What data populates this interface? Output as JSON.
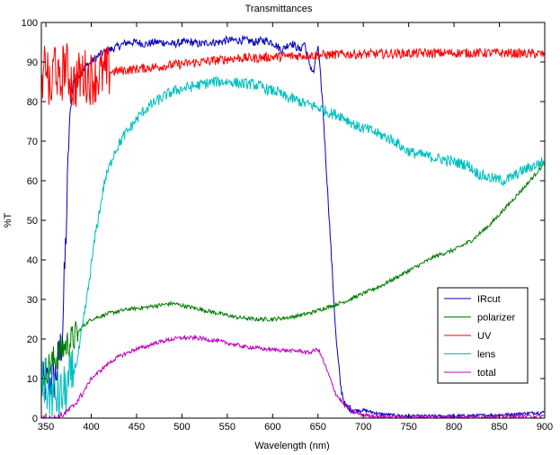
{
  "chart_data": {
    "type": "line",
    "title": "Transmittances",
    "xlabel": "Wavelength (nm)",
    "ylabel": "%T",
    "xlim": [
      345,
      900
    ],
    "ylim": [
      0,
      100
    ],
    "xticks": [
      350,
      400,
      450,
      500,
      550,
      600,
      650,
      700,
      750,
      800,
      850,
      900
    ],
    "yticks": [
      0,
      10,
      20,
      30,
      40,
      50,
      60,
      70,
      80,
      90,
      100
    ],
    "grid": false,
    "legend_position": "bottom-right",
    "series": [
      {
        "name": "IRcut",
        "color": "#0000bf",
        "x": [
          345,
          360,
          368,
          372,
          376,
          380,
          390,
          400,
          410,
          420,
          430,
          440,
          450,
          460,
          470,
          480,
          490,
          500,
          510,
          520,
          530,
          540,
          550,
          560,
          570,
          580,
          590,
          600,
          610,
          620,
          630,
          635,
          640,
          645,
          650,
          655,
          660,
          665,
          670,
          675,
          680,
          690,
          700,
          710,
          720,
          730,
          740,
          750,
          800,
          850,
          900
        ],
        "y": [
          8,
          10,
          20,
          45,
          75,
          85,
          88,
          90,
          92,
          93,
          94,
          95,
          95,
          94.5,
          95,
          95,
          94.5,
          95,
          95,
          94.5,
          95,
          95,
          95.5,
          95.5,
          95.5,
          95,
          95.5,
          95,
          93,
          95,
          93,
          95,
          90,
          87,
          94,
          80,
          60,
          40,
          20,
          8,
          3,
          2,
          2,
          1.5,
          1,
          0.8,
          0.6,
          0.5,
          0.5,
          0.8,
          1.5
        ]
      },
      {
        "name": "polarizer",
        "color": "#007f00",
        "x": [
          345,
          350,
          360,
          370,
          380,
          390,
          400,
          420,
          440,
          460,
          480,
          490,
          500,
          520,
          540,
          560,
          580,
          600,
          620,
          640,
          660,
          680,
          700,
          720,
          740,
          760,
          780,
          800,
          820,
          840,
          860,
          880,
          900
        ],
        "y": [
          10,
          12,
          15,
          18,
          20,
          23,
          25,
          26.5,
          27.5,
          28,
          28.7,
          29,
          28.5,
          27.5,
          26.5,
          25.5,
          25,
          25,
          25.5,
          26.5,
          28,
          29.5,
          31.5,
          33.5,
          36,
          38.5,
          41,
          42.5,
          45,
          49,
          54,
          59,
          64.5
        ]
      },
      {
        "name": "UV",
        "color": "#ff0000",
        "x": [
          345,
          350,
          355,
          360,
          365,
          370,
          380,
          390,
          400,
          420,
          440,
          460,
          480,
          500,
          520,
          540,
          560,
          580,
          600,
          620,
          640,
          660,
          680,
          700,
          750,
          800,
          850,
          900
        ],
        "y": [
          78,
          92,
          80,
          92,
          82,
          90,
          84,
          87,
          86,
          87.5,
          88,
          88.5,
          89,
          89.5,
          90,
          90.5,
          91,
          91,
          91.3,
          91.5,
          91.7,
          91.8,
          92,
          92,
          92.2,
          92.3,
          92.3,
          92
        ]
      },
      {
        "name": "lens",
        "color": "#00bfbf",
        "x": [
          345,
          355,
          365,
          375,
          385,
          395,
          405,
          415,
          425,
          435,
          445,
          455,
          465,
          475,
          485,
          495,
          505,
          515,
          525,
          535,
          545,
          555,
          565,
          575,
          585,
          595,
          605,
          615,
          625,
          635,
          645,
          655,
          665,
          675,
          685,
          695,
          705,
          715,
          725,
          735,
          745,
          755,
          765,
          775,
          785,
          795,
          805,
          815,
          825,
          835,
          845,
          855,
          865,
          875,
          885,
          900
        ],
        "y": [
          10,
          6,
          5,
          8,
          15,
          30,
          47,
          60,
          67,
          71,
          74,
          77,
          79,
          80.5,
          82,
          83,
          83.5,
          84,
          84.5,
          85,
          85,
          85,
          84.5,
          84.5,
          84,
          83,
          82.5,
          81,
          80.5,
          79.5,
          79,
          78,
          77,
          76.5,
          75,
          73.5,
          73,
          72,
          71,
          70,
          68,
          67,
          66.5,
          66,
          65.5,
          65,
          64.5,
          64,
          62,
          61,
          60.5,
          60,
          61,
          62.5,
          63.5,
          65
        ]
      },
      {
        "name": "total",
        "color": "#bf00bf",
        "x": [
          345,
          350,
          360,
          370,
          380,
          390,
          400,
          410,
          420,
          430,
          440,
          450,
          460,
          470,
          480,
          490,
          500,
          510,
          520,
          530,
          540,
          550,
          560,
          570,
          580,
          590,
          600,
          610,
          620,
          630,
          640,
          645,
          650,
          655,
          660,
          665,
          670,
          680,
          690,
          700,
          720,
          750,
          800,
          850,
          900
        ],
        "y": [
          0,
          0,
          0,
          1,
          3,
          6,
          10,
          12,
          14,
          15.5,
          16.5,
          17.5,
          18,
          19,
          19.5,
          20,
          20.3,
          20.3,
          20.2,
          19.8,
          19.5,
          19,
          18.5,
          18,
          17.8,
          17.5,
          17.3,
          17.2,
          17,
          17,
          16.5,
          17,
          17.5,
          15,
          12,
          9,
          6,
          3,
          1.5,
          0.8,
          0.4,
          0.3,
          0.3,
          0.4,
          0.5
        ]
      }
    ]
  }
}
